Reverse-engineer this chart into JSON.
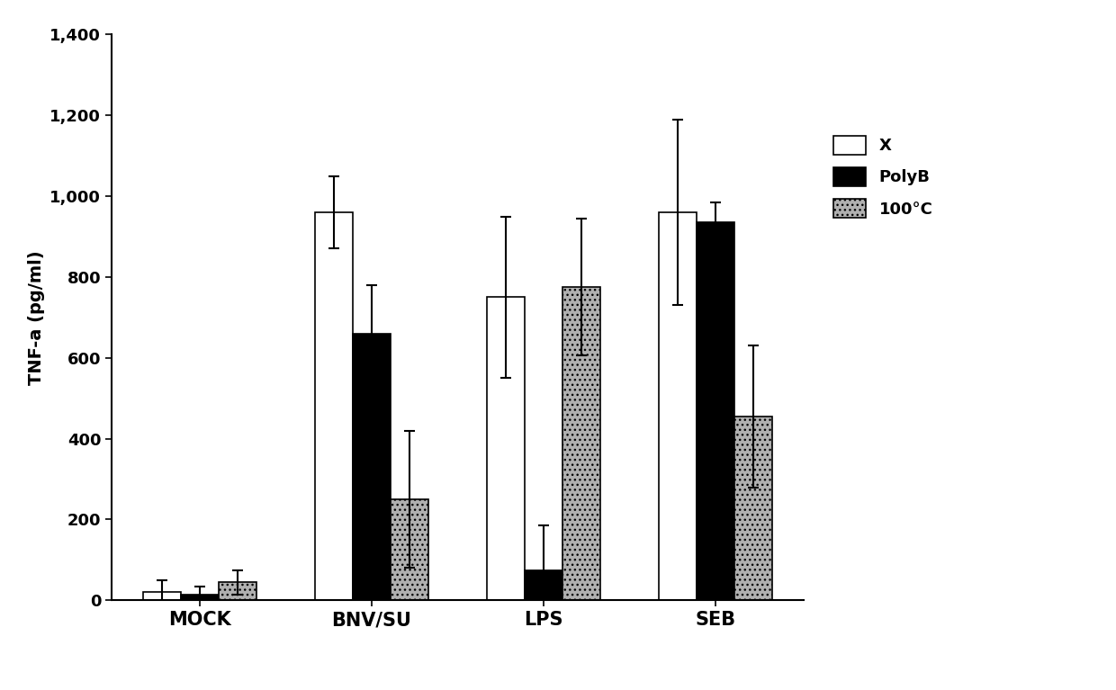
{
  "categories": [
    "MOCK",
    "BNV/SU",
    "LPS",
    "SEB"
  ],
  "series": {
    "X": {
      "values": [
        20,
        960,
        750,
        960
      ],
      "errors": [
        30,
        90,
        200,
        230
      ],
      "color": "#ffffff",
      "edgecolor": "#000000",
      "hatch": null
    },
    "PolyB": {
      "values": [
        15,
        660,
        75,
        935
      ],
      "errors": [
        20,
        120,
        110,
        50
      ],
      "color": "#000000",
      "edgecolor": "#000000",
      "hatch": null
    },
    "100°C": {
      "values": [
        45,
        250,
        775,
        455
      ],
      "errors": [
        30,
        170,
        170,
        175
      ],
      "color": "#b0b0b0",
      "edgecolor": "#000000",
      "hatch": "..."
    }
  },
  "ylabel": "TNF-a (pg/ml)",
  "ylim": [
    0,
    1400
  ],
  "yticks": [
    0,
    200,
    400,
    600,
    800,
    1000,
    1200,
    1400
  ],
  "ytick_labels": [
    "0",
    "200",
    "400",
    "600",
    "800",
    "1,000",
    "1,200",
    "1,400"
  ],
  "bar_width": 0.22,
  "background_color": "#ffffff",
  "legend_labels": [
    "X",
    "PolyB",
    "100°C"
  ],
  "axis_fontsize": 14,
  "tick_fontsize": 13,
  "legend_fontsize": 13
}
